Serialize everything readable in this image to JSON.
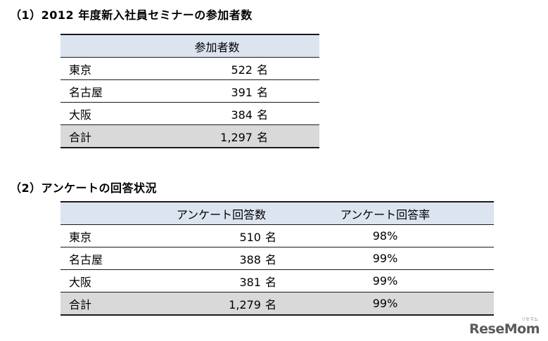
{
  "section1": {
    "heading": "（1）2012 年度新入社員セミナーの参加者数",
    "header": "参加者数",
    "rows": [
      {
        "label": "東京",
        "value": "522",
        "unit": "名"
      },
      {
        "label": "名古屋",
        "value": "391",
        "unit": "名"
      },
      {
        "label": "大阪",
        "value": "384",
        "unit": "名"
      },
      {
        "label": "合計",
        "value": "1,297",
        "unit": "名"
      }
    ]
  },
  "section2": {
    "heading": "（2）アンケートの回答状況",
    "headers": [
      "アンケート回答数",
      "アンケート回答率"
    ],
    "rows": [
      {
        "label": "東京",
        "value": "510",
        "unit": "名",
        "rate": "98%"
      },
      {
        "label": "名古屋",
        "value": "388",
        "unit": "名",
        "rate": "99%"
      },
      {
        "label": "大阪",
        "value": "381",
        "unit": "名",
        "rate": "99%"
      },
      {
        "label": "合計",
        "value": "1,279",
        "unit": "名",
        "rate": "99%"
      }
    ]
  },
  "logo": {
    "text": "ReseMom",
    "sub": "リセマム"
  },
  "colors": {
    "header_bg": "#dce4f0",
    "total_bg": "#d9d9d9"
  }
}
